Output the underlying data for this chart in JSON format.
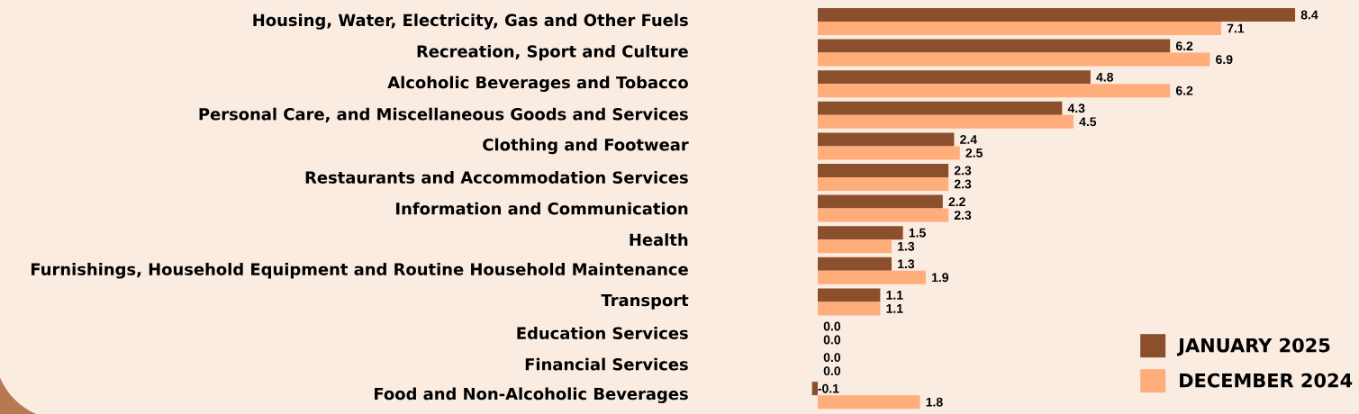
{
  "chart_data": {
    "type": "bar",
    "orientation": "horizontal",
    "categories": [
      "Housing, Water, Electricity, Gas and Other Fuels",
      "Recreation, Sport and Culture",
      "Alcoholic Beverages and Tobacco",
      "Personal Care, and Miscellaneous Goods and Services",
      "Clothing and Footwear",
      "Restaurants and Accommodation Services",
      "Information and Communication",
      "Health",
      "Furnishings, Household Equipment and Routine Household Maintenance",
      "Transport",
      "Education Services",
      "Financial Services",
      "Food and Non-Alcoholic Beverages"
    ],
    "series": [
      {
        "name": "JANUARY 2025",
        "color": "#8b502b",
        "values": [
          8.4,
          6.2,
          4.8,
          4.3,
          2.4,
          2.3,
          2.2,
          1.5,
          1.3,
          1.1,
          0.0,
          0.0,
          -0.1
        ],
        "value_labels": [
          "8.4",
          "6.2",
          "4.8",
          "4.3",
          "2.4",
          "2.3",
          "2.2",
          "1.5",
          "1.3",
          "1.1",
          "0.0",
          "0.0",
          "-0.1"
        ]
      },
      {
        "name": "DECEMBER 2024",
        "color": "#ffad7a",
        "values": [
          7.1,
          6.9,
          6.2,
          4.5,
          2.5,
          2.3,
          2.3,
          1.3,
          1.9,
          1.1,
          0.0,
          0.0,
          1.8
        ],
        "value_labels": [
          "7.1",
          "6.9",
          "6.2",
          "4.5",
          "2.5",
          "2.3",
          "2.3",
          "1.3",
          "1.9",
          "1.1",
          "0.0",
          "0.0",
          "1.8"
        ]
      }
    ],
    "legend": "bottom right"
  }
}
